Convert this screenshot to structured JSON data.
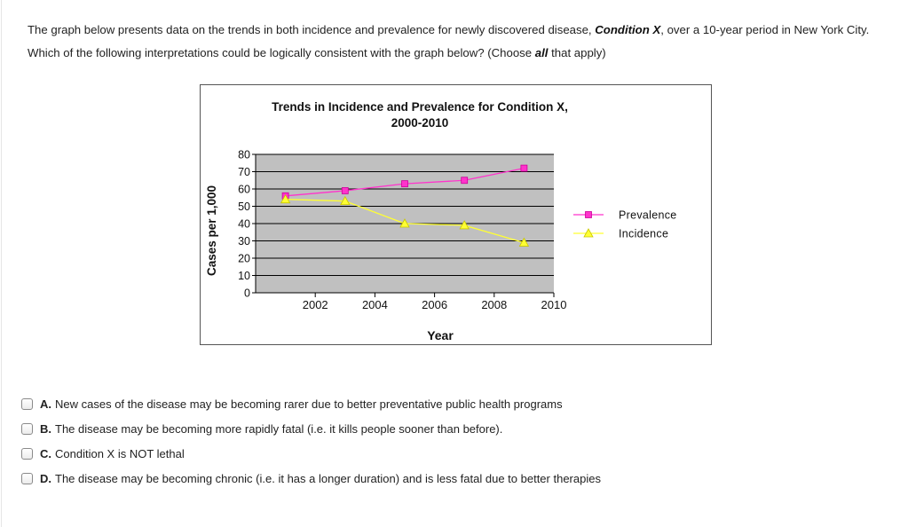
{
  "question": {
    "part1": "The graph below presents data on the trends in both incidence and prevalence for newly discovered disease, ",
    "condition": "Condition X",
    "part2": ", over a 10-year period in New York City. Which of the following interpretations could be logically consistent with the graph below? (Choose ",
    "all": "all",
    "part3": " that apply)"
  },
  "chart_data": {
    "type": "line",
    "title_line1": "Trends in Incidence and Prevalence for Condition X,",
    "title_line2": "2000-2010",
    "xlabel": "Year",
    "ylabel": "Cases per 1,000",
    "xlim": [
      2000,
      2010
    ],
    "ylim": [
      0,
      80
    ],
    "x_ticks": [
      2002,
      2004,
      2006,
      2008,
      2010
    ],
    "y_ticks": [
      0,
      10,
      20,
      30,
      40,
      50,
      60,
      70,
      80
    ],
    "grid": true,
    "legend_position": "right",
    "series": [
      {
        "name": "Prevalence",
        "color": "#ff33cc",
        "marker": "square",
        "x": [
          2001,
          2003,
          2005,
          2007,
          2009
        ],
        "y": [
          56,
          59,
          63,
          65,
          72
        ]
      },
      {
        "name": "Incidence",
        "color": "#ffff33",
        "marker": "triangle",
        "x": [
          2001,
          2003,
          2005,
          2007,
          2009
        ],
        "y": [
          54,
          53,
          40,
          39,
          29
        ]
      }
    ]
  },
  "options": [
    {
      "letter": "A.",
      "text": "New cases of the disease may be becoming rarer due to better preventative public health programs"
    },
    {
      "letter": "B.",
      "text": "The disease may be becoming more rapidly fatal (i.e. it kills people sooner than before)."
    },
    {
      "letter": "C.",
      "text": "Condition X is NOT lethal"
    },
    {
      "letter": "D.",
      "text": "The disease may be becoming chronic (i.e. it has a longer duration) and is less fatal due to better therapies"
    }
  ]
}
